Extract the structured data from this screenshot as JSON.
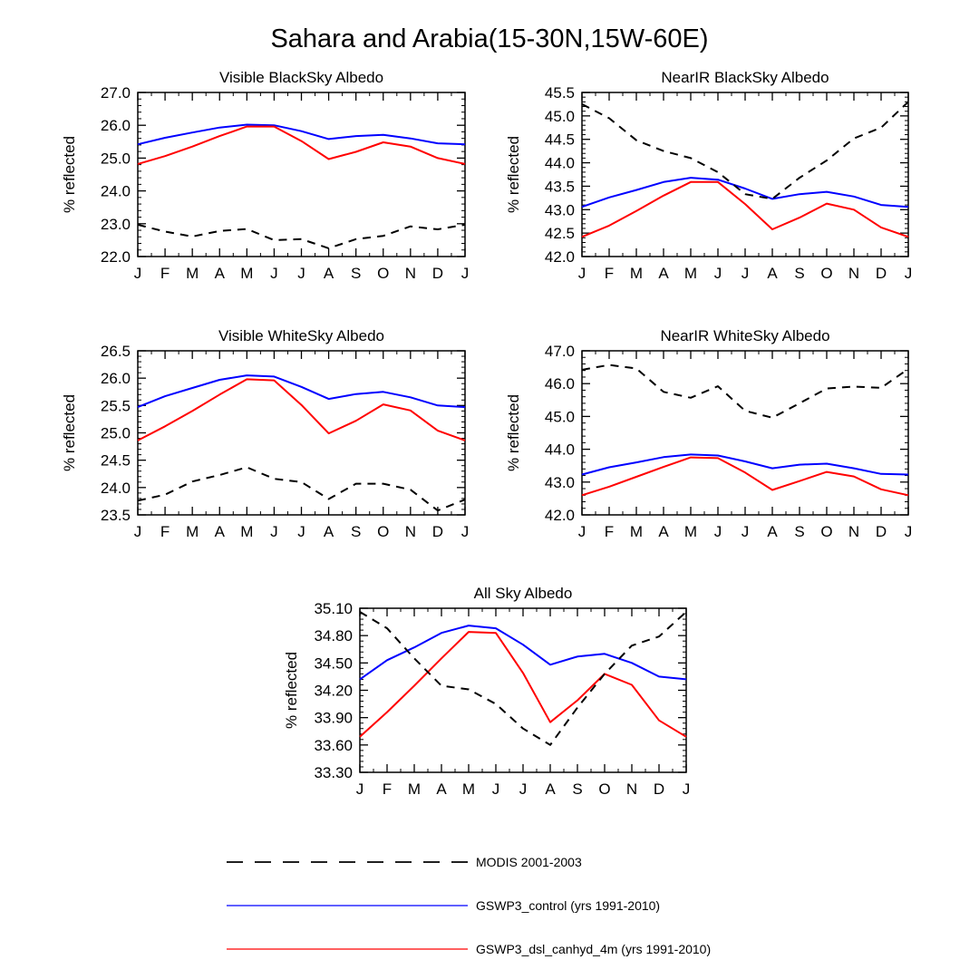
{
  "figure_title": "Sahara and Arabia(15-30N,15W-60E)",
  "legend": {
    "items": [
      {
        "name": "MODIS 2001-2003",
        "color": "#000000",
        "dash": "dashed"
      },
      {
        "name": "GSWP3_control (yrs 1991-2010)",
        "color": "#0000ff",
        "dash": "solid"
      },
      {
        "name": "GSWP3_dsl_canhyd_4m (yrs 1991-2010)",
        "color": "#ff0000",
        "dash": "solid"
      }
    ]
  },
  "colors": {
    "modis": "#000000",
    "control": "#0000ff",
    "dsl": "#ff0000"
  },
  "chart_data": [
    {
      "type": "line",
      "title": "Visible BlackSky Albedo",
      "xlabel": "",
      "ylabel": "% reflected",
      "categories": [
        "J",
        "F",
        "M",
        "A",
        "M",
        "J",
        "J",
        "A",
        "S",
        "O",
        "N",
        "D",
        "J"
      ],
      "ylim": [
        22.0,
        27.0
      ],
      "yticks": [
        "22.0",
        "23.0",
        "24.0",
        "25.0",
        "26.0",
        "27.0"
      ],
      "series": [
        {
          "name": "MODIS 2001-2003",
          "values": [
            22.97,
            22.76,
            22.61,
            22.78,
            22.84,
            22.5,
            22.53,
            22.25,
            22.53,
            22.63,
            22.92,
            22.83,
            22.97
          ]
        },
        {
          "name": "GSWP3_control (yrs 1991-2010)",
          "values": [
            25.42,
            25.62,
            25.78,
            25.93,
            26.02,
            26.0,
            25.82,
            25.58,
            25.67,
            25.71,
            25.6,
            25.45,
            25.42
          ]
        },
        {
          "name": "GSWP3_dsl_canhyd_4m (yrs 1991-2010)",
          "values": [
            24.82,
            25.06,
            25.35,
            25.67,
            25.96,
            25.96,
            25.52,
            24.97,
            25.19,
            25.48,
            25.35,
            25.0,
            24.82
          ]
        }
      ]
    },
    {
      "type": "line",
      "title": "NearIR BlackSky Albedo",
      "xlabel": "",
      "ylabel": "% reflected",
      "categories": [
        "J",
        "F",
        "M",
        "A",
        "M",
        "J",
        "J",
        "A",
        "S",
        "O",
        "N",
        "D",
        "J"
      ],
      "ylim": [
        42.0,
        45.5
      ],
      "yticks": [
        "42.0",
        "42.5",
        "43.0",
        "43.5",
        "44.0",
        "44.5",
        "45.0",
        "45.5"
      ],
      "series": [
        {
          "name": "MODIS 2001-2003",
          "values": [
            45.25,
            44.95,
            44.48,
            44.25,
            44.1,
            43.8,
            43.33,
            43.23,
            43.68,
            44.05,
            44.52,
            44.75,
            45.3
          ]
        },
        {
          "name": "GSWP3_control (yrs 1991-2010)",
          "values": [
            43.06,
            43.26,
            43.42,
            43.59,
            43.68,
            43.64,
            43.45,
            43.23,
            43.33,
            43.38,
            43.28,
            43.1,
            43.06
          ]
        },
        {
          "name": "GSWP3_dsl_canhyd_4m (yrs 1991-2010)",
          "values": [
            42.42,
            42.66,
            42.97,
            43.3,
            43.59,
            43.59,
            43.12,
            42.58,
            42.83,
            43.13,
            43.0,
            42.62,
            42.42
          ]
        }
      ]
    },
    {
      "type": "line",
      "title": "Visible WhiteSky Albedo",
      "xlabel": "",
      "ylabel": "% reflected",
      "categories": [
        "J",
        "F",
        "M",
        "A",
        "M",
        "J",
        "J",
        "A",
        "S",
        "O",
        "N",
        "D",
        "J"
      ],
      "ylim": [
        23.5,
        26.5
      ],
      "yticks": [
        "23.5",
        "24.0",
        "24.5",
        "25.0",
        "25.5",
        "26.0",
        "26.5"
      ],
      "series": [
        {
          "name": "MODIS 2001-2003",
          "values": [
            23.76,
            23.87,
            24.11,
            24.23,
            24.37,
            24.16,
            24.1,
            23.79,
            24.07,
            24.07,
            23.96,
            23.58,
            23.78
          ]
        },
        {
          "name": "GSWP3_control (yrs 1991-2010)",
          "values": [
            25.47,
            25.67,
            25.82,
            25.97,
            26.05,
            26.03,
            25.84,
            25.62,
            25.71,
            25.75,
            25.65,
            25.5,
            25.47
          ]
        },
        {
          "name": "GSWP3_dsl_canhyd_4m (yrs 1991-2010)",
          "values": [
            24.86,
            25.12,
            25.4,
            25.7,
            25.98,
            25.96,
            25.51,
            24.99,
            25.22,
            25.52,
            25.41,
            25.04,
            24.86
          ]
        }
      ]
    },
    {
      "type": "line",
      "title": "NearIR WhiteSky Albedo",
      "xlabel": "",
      "ylabel": "% reflected",
      "categories": [
        "J",
        "F",
        "M",
        "A",
        "M",
        "J",
        "J",
        "A",
        "S",
        "O",
        "N",
        "D",
        "J"
      ],
      "ylim": [
        42.0,
        47.0
      ],
      "yticks": [
        "42.0",
        "43.0",
        "44.0",
        "45.0",
        "46.0",
        "47.0"
      ],
      "series": [
        {
          "name": "MODIS 2001-2003",
          "values": [
            46.42,
            46.57,
            46.46,
            45.75,
            45.57,
            45.92,
            45.17,
            44.96,
            45.4,
            45.85,
            45.91,
            45.87,
            46.45
          ]
        },
        {
          "name": "GSWP3_control (yrs 1991-2010)",
          "values": [
            43.23,
            43.45,
            43.6,
            43.76,
            43.84,
            43.81,
            43.63,
            43.42,
            43.53,
            43.56,
            43.42,
            43.25,
            43.23
          ]
        },
        {
          "name": "GSWP3_dsl_canhyd_4m (yrs 1991-2010)",
          "values": [
            42.6,
            42.86,
            43.16,
            43.46,
            43.75,
            43.73,
            43.29,
            42.76,
            43.03,
            43.31,
            43.17,
            42.78,
            42.6
          ]
        }
      ]
    },
    {
      "type": "line",
      "title": "All Sky Albedo",
      "xlabel": "",
      "ylabel": "% reflected",
      "categories": [
        "J",
        "F",
        "M",
        "A",
        "M",
        "J",
        "J",
        "A",
        "S",
        "O",
        "N",
        "D",
        "J"
      ],
      "ylim": [
        33.3,
        35.1
      ],
      "yticks": [
        "33.30",
        "33.60",
        "33.90",
        "34.20",
        "34.50",
        "34.80",
        "35.10"
      ],
      "series": [
        {
          "name": "MODIS 2001-2003",
          "values": [
            35.06,
            34.88,
            34.55,
            34.25,
            34.21,
            34.05,
            33.78,
            33.6,
            34.01,
            34.38,
            34.69,
            34.79,
            35.06
          ]
        },
        {
          "name": "GSWP3_control (yrs 1991-2010)",
          "values": [
            34.32,
            34.53,
            34.67,
            34.83,
            34.91,
            34.88,
            34.7,
            34.48,
            34.57,
            34.6,
            34.5,
            34.35,
            34.32
          ]
        },
        {
          "name": "GSWP3_dsl_canhyd_4m (yrs 1991-2010)",
          "values": [
            33.69,
            33.96,
            34.25,
            34.55,
            34.84,
            34.83,
            34.39,
            33.85,
            34.09,
            34.38,
            34.26,
            33.87,
            33.69
          ]
        }
      ]
    }
  ]
}
